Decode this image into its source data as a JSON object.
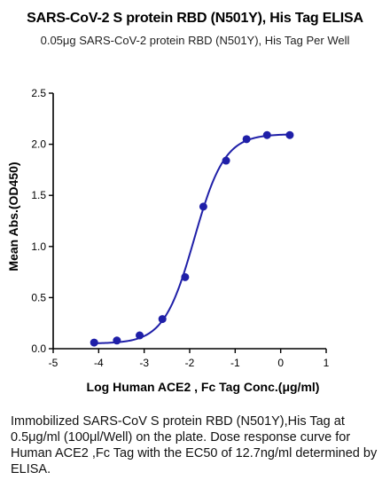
{
  "header": {
    "title": "SARS-CoV-2 S protein RBD (N501Y),  His Tag ELISA",
    "subtitle": "0.05μg SARS-CoV-2 protein RBD (N501Y), His Tag Per Well"
  },
  "caption": "Immobilized SARS-CoV S protein RBD (N501Y),His Tag at 0.5μg/ml (100μl/Well) on the plate. Dose response curve for Human ACE2 ,Fc Tag with the EC50 of 12.7ng/ml determined by ELISA.",
  "chart_data": {
    "type": "scatter",
    "title": "SARS-CoV-2 S protein RBD (N501Y),  His Tag ELISA",
    "subtitle": "0.05μg SARS-CoV-2 protein RBD (N501Y), His Tag Per Well",
    "xlabel": "Log Human ACE2 , Fc Tag Conc.(μg/ml)",
    "ylabel": "Mean Abs.(OD450)",
    "xlim": [
      -5,
      1
    ],
    "ylim": [
      0,
      2.5
    ],
    "xticks": [
      "-5",
      "-4",
      "-3",
      "-2",
      "-1",
      "0",
      "1"
    ],
    "yticks": [
      "0.0",
      "0.5",
      "1.0",
      "1.5",
      "2.0",
      "2.5"
    ],
    "xtick_values": [
      -5,
      -4,
      -3,
      -2,
      -1,
      0,
      1
    ],
    "ytick_values": [
      0,
      0.5,
      1.0,
      1.5,
      2.0,
      2.5
    ],
    "grid": false,
    "color": "#1f1fa8",
    "points": [
      {
        "x": -4.1,
        "y": 0.06
      },
      {
        "x": -3.6,
        "y": 0.08
      },
      {
        "x": -3.1,
        "y": 0.13
      },
      {
        "x": -2.6,
        "y": 0.29
      },
      {
        "x": -2.1,
        "y": 0.7
      },
      {
        "x": -1.7,
        "y": 1.39
      },
      {
        "x": -1.2,
        "y": 1.84
      },
      {
        "x": -0.75,
        "y": 2.05
      },
      {
        "x": -0.3,
        "y": 2.09
      },
      {
        "x": 0.2,
        "y": 2.09
      }
    ],
    "fit": {
      "model": "4PL",
      "bottom": 0.05,
      "top": 2.1,
      "logEC50": -1.9,
      "hill": 1.3
    }
  }
}
